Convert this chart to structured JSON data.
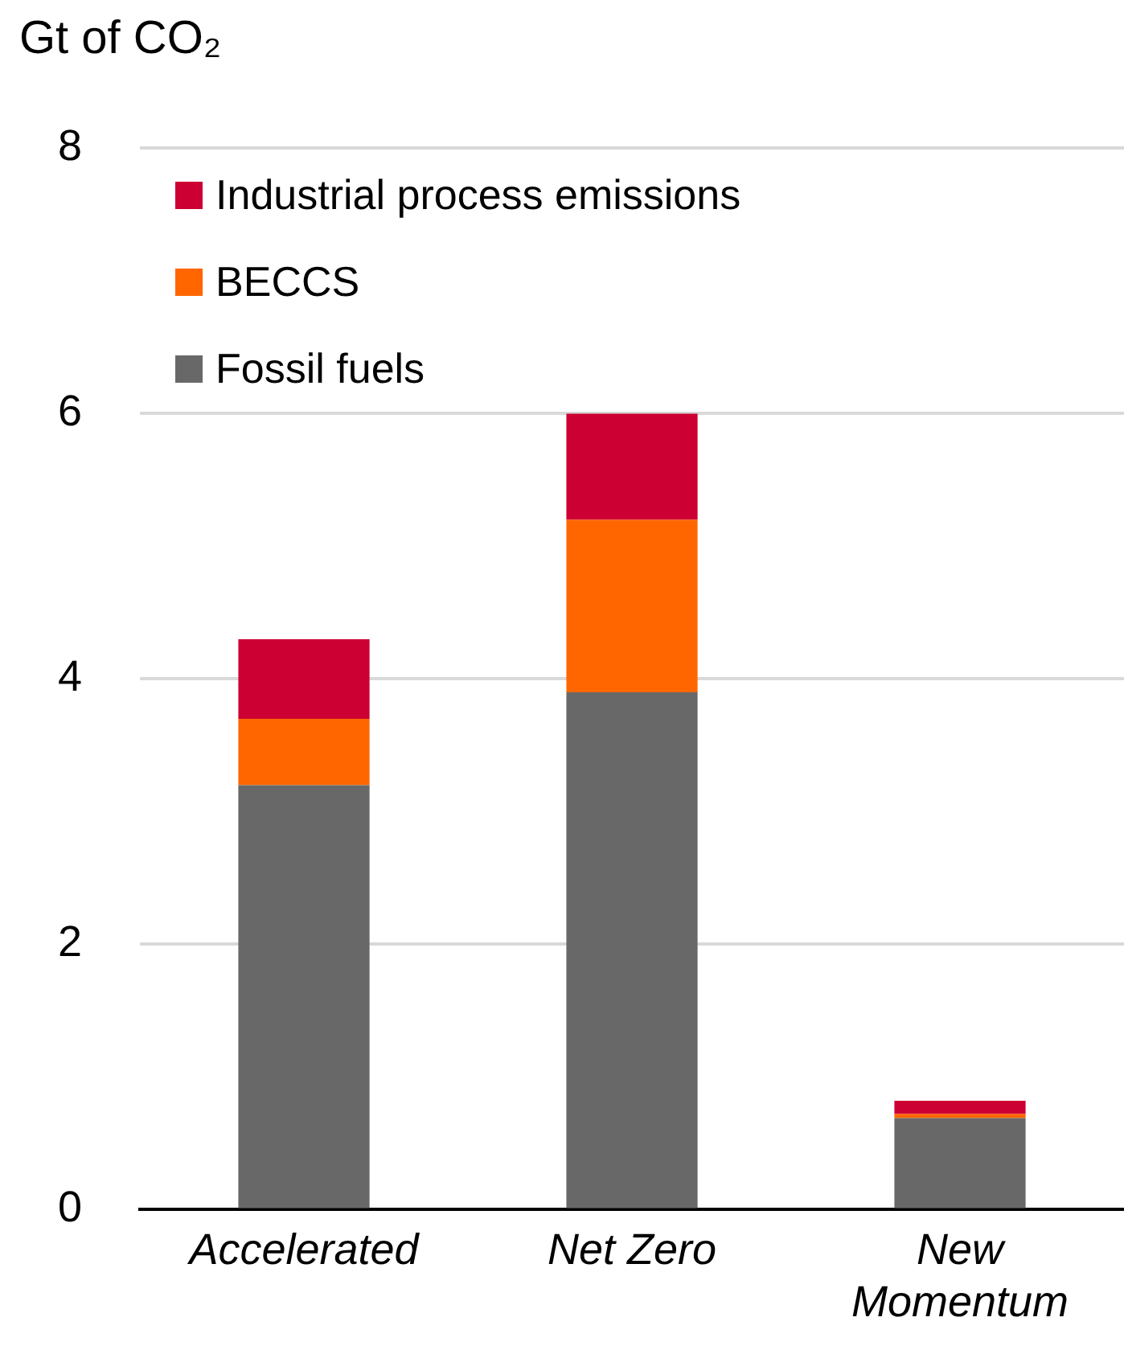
{
  "chart_data": {
    "type": "bar",
    "ylabel": "Gt of CO₂",
    "categories": [
      "Accelerated",
      "Net Zero",
      "New Momentum"
    ],
    "stacked": true,
    "series": [
      {
        "name": "Fossil fuels",
        "color": "#686868",
        "values": [
          3.2,
          3.9,
          0.69
        ]
      },
      {
        "name": "BECCS",
        "color": "#ff6600",
        "values": [
          0.5,
          1.3,
          0.03
        ]
      },
      {
        "name": "Industrial process emissions",
        "color": "#cc0033",
        "values": [
          0.6,
          0.8,
          0.1
        ]
      }
    ],
    "ylim": [
      0,
      8
    ],
    "yticks": [
      0,
      2,
      4,
      6,
      8
    ],
    "grid": "y",
    "legend": "top left"
  }
}
